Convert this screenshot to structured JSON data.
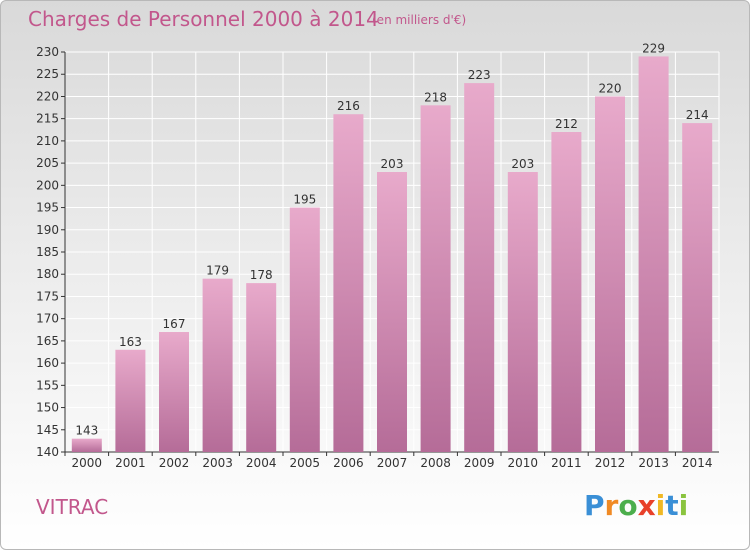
{
  "header": {
    "title": "Charges de Personnel 2000 à 2014",
    "subtitle": "(en milliers d'€)"
  },
  "footer": {
    "commune": "VITRAC",
    "logo_letters": [
      "P",
      "r",
      "o",
      "x",
      "i",
      "t",
      "i"
    ],
    "logo_colors": [
      "#3a8fd6",
      "#f08a24",
      "#4cae4c",
      "#e8402a",
      "#f0b824",
      "#3a8fd6",
      "#8ac43f"
    ]
  },
  "colors": {
    "bar_top": "#e8aacb",
    "bar_bottom": "#b56c98",
    "grid": "#ffffff",
    "text_accent": "#c2578c"
  },
  "chart_data": {
    "type": "bar",
    "title": "Charges de Personnel 2000 à 2014",
    "subtitle": "(en milliers d'€)",
    "xlabel": "",
    "ylabel": "",
    "categories": [
      "2000",
      "2001",
      "2002",
      "2003",
      "2004",
      "2005",
      "2006",
      "2007",
      "2008",
      "2009",
      "2010",
      "2011",
      "2012",
      "2013",
      "2014"
    ],
    "values": [
      143,
      163,
      167,
      179,
      178,
      195,
      216,
      203,
      218,
      223,
      203,
      212,
      220,
      229,
      214
    ],
    "ylim": [
      140,
      230
    ],
    "yticks": [
      140,
      145,
      150,
      155,
      160,
      165,
      170,
      175,
      180,
      185,
      190,
      195,
      200,
      205,
      210,
      215,
      220,
      225,
      230
    ],
    "grid": true,
    "legend": "none"
  }
}
